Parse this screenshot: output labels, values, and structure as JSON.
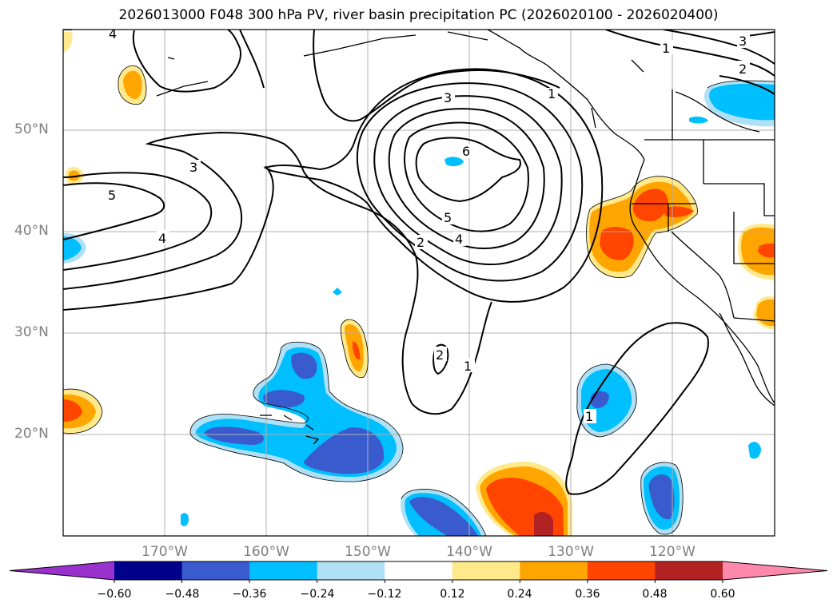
{
  "title": "2026013000 F048 300 hPa PV, river basin precipitation PC (2026020100 - 2026020400)",
  "map": {
    "lat_labels": [
      "50°N",
      "40°N",
      "30°N",
      "20°N"
    ],
    "lon_labels": [
      "170°W",
      "160°W",
      "150°W",
      "140°W",
      "130°W",
      "120°W"
    ],
    "pv_contour_labels": [
      "6",
      "5",
      "4",
      "3",
      "2",
      "1",
      "5",
      "4",
      "3",
      "4",
      "2",
      "3",
      "1",
      "2",
      "1",
      "1"
    ]
  },
  "colorbar": {
    "ticks": [
      "−0.60",
      "−0.48",
      "−0.36",
      "−0.24",
      "−0.12",
      "0.12",
      "0.24",
      "0.36",
      "0.48",
      "0.60"
    ],
    "levels": [
      -0.6,
      -0.48,
      -0.36,
      -0.24,
      -0.12,
      0.12,
      0.24,
      0.36,
      0.48,
      0.6
    ],
    "colors": [
      "#9932cc",
      "#00008b",
      "#3a5bcd",
      "#00bfff",
      "#b0e0f5",
      "#ffffff",
      "#ffe98a",
      "#ffa500",
      "#ff4500",
      "#b22222",
      "#ff88ad"
    ]
  }
}
